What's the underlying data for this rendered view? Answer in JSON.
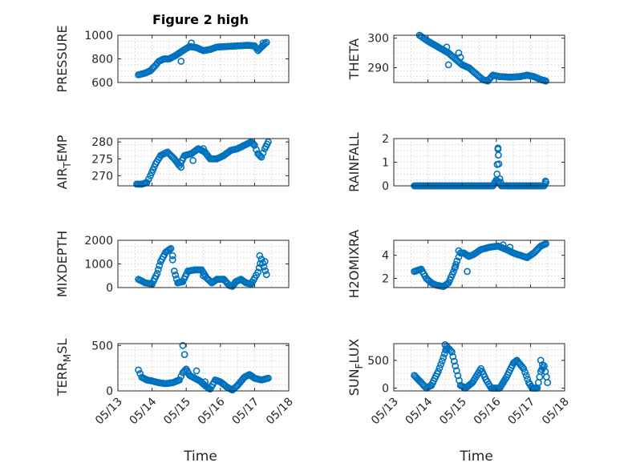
{
  "figure_title": "Figure 2 high",
  "x_tick_labels": [
    "05/13",
    "05/14",
    "05/15",
    "05/16",
    "05/17",
    "05/18"
  ],
  "xlabel": "Time",
  "marker_color": "#0072BD",
  "chart_data": [
    {
      "type": "scatter",
      "ylabel": "PRESSURE",
      "ylim": [
        600,
        1000
      ],
      "yticks": [
        600,
        800,
        1000
      ],
      "xlim": [
        0,
        5
      ],
      "grid": "on",
      "title": "Figure 2 high",
      "anchors": [
        [
          0.6,
          665
        ],
        [
          0.8,
          680
        ],
        [
          0.95,
          700
        ],
        [
          1.1,
          745
        ],
        [
          1.2,
          780
        ],
        [
          1.35,
          800
        ],
        [
          1.5,
          800
        ],
        [
          1.7,
          830
        ],
        [
          1.9,
          870
        ],
        [
          2.1,
          905
        ],
        [
          2.3,
          895
        ],
        [
          2.5,
          870
        ],
        [
          2.7,
          880
        ],
        [
          2.9,
          900
        ],
        [
          3.2,
          905
        ],
        [
          3.5,
          910
        ],
        [
          3.8,
          915
        ],
        [
          4.0,
          910
        ],
        [
          4.1,
          870
        ],
        [
          4.2,
          900
        ],
        [
          4.35,
          940
        ]
      ],
      "step": 0.04,
      "extra": [
        [
          1.85,
          780
        ],
        [
          2.15,
          935
        ],
        [
          4.25,
          935
        ]
      ]
    },
    {
      "type": "scatter",
      "ylabel": "THETA",
      "ylim": [
        285,
        301
      ],
      "yticks": [
        290,
        300
      ],
      "xlim": [
        0,
        5
      ],
      "grid": "on",
      "anchors": [
        [
          0.75,
          301
        ],
        [
          1.0,
          299
        ],
        [
          1.3,
          297
        ],
        [
          1.6,
          295
        ],
        [
          1.8,
          293
        ],
        [
          2.0,
          291
        ],
        [
          2.2,
          290
        ],
        [
          2.4,
          288
        ],
        [
          2.6,
          286
        ],
        [
          2.75,
          285.5
        ],
        [
          2.9,
          287.5
        ],
        [
          3.1,
          287
        ],
        [
          3.4,
          286.8
        ],
        [
          3.7,
          287
        ],
        [
          3.9,
          287.5
        ],
        [
          4.1,
          287
        ],
        [
          4.3,
          286
        ],
        [
          4.45,
          285.5
        ]
      ],
      "step": 0.04,
      "extra": [
        [
          1.9,
          295
        ],
        [
          1.95,
          293.5
        ],
        [
          1.55,
          297
        ],
        [
          1.6,
          291
        ]
      ]
    },
    {
      "type": "scatter",
      "ylabel": "AIR_TEMP",
      "ylim": [
        267,
        281
      ],
      "yticks": [
        270,
        275,
        280
      ],
      "xlim": [
        0,
        5
      ],
      "grid": "on",
      "anchors": [
        [
          0.55,
          267.5
        ],
        [
          0.7,
          267.5
        ],
        [
          0.85,
          268
        ],
        [
          0.95,
          270
        ],
        [
          1.1,
          273.5
        ],
        [
          1.25,
          276
        ],
        [
          1.45,
          277
        ],
        [
          1.65,
          275
        ],
        [
          1.8,
          273
        ],
        [
          1.95,
          276
        ],
        [
          2.15,
          276.5
        ],
        [
          2.35,
          278
        ],
        [
          2.55,
          277
        ],
        [
          2.7,
          275
        ],
        [
          2.9,
          275
        ],
        [
          3.1,
          276
        ],
        [
          3.3,
          277.5
        ],
        [
          3.5,
          278
        ],
        [
          3.7,
          279
        ],
        [
          3.9,
          280
        ],
        [
          4.0,
          279
        ],
        [
          4.1,
          276.5
        ],
        [
          4.2,
          275.5
        ],
        [
          4.3,
          278
        ],
        [
          4.4,
          280
        ]
      ],
      "step": 0.04,
      "extra": [
        [
          1.85,
          272.5
        ],
        [
          2.5,
          278
        ],
        [
          2.2,
          274.5
        ]
      ]
    },
    {
      "type": "scatter",
      "ylabel": "RAINFALL",
      "ylim": [
        0,
        2
      ],
      "yticks": [
        0,
        1,
        2
      ],
      "xlim": [
        0,
        5
      ],
      "grid": "on",
      "anchors": [
        [
          0.6,
          0.0
        ],
        [
          2.9,
          0.0
        ],
        [
          3.0,
          0.25
        ],
        [
          3.05,
          1.55
        ],
        [
          3.1,
          0.3
        ],
        [
          3.15,
          0.0
        ],
        [
          4.4,
          0.0
        ],
        [
          4.45,
          0.15
        ]
      ],
      "step": 0.025,
      "extra": [
        [
          3.05,
          1.6
        ],
        [
          3.06,
          1.3
        ],
        [
          3.02,
          0.5
        ],
        [
          3.04,
          0.2
        ],
        [
          3.07,
          0.15
        ],
        [
          4.44,
          0.2
        ]
      ]
    },
    {
      "type": "scatter",
      "ylabel": "MIXDEPTH",
      "ylim": [
        0,
        2000
      ],
      "yticks": [
        0,
        1000,
        2000
      ],
      "xlim": [
        0,
        5
      ],
      "grid": "on",
      "anchors": [
        [
          0.6,
          350
        ],
        [
          0.8,
          200
        ],
        [
          1.0,
          150
        ],
        [
          1.15,
          600
        ],
        [
          1.25,
          1100
        ],
        [
          1.4,
          1500
        ],
        [
          1.55,
          1650
        ],
        [
          1.65,
          700
        ],
        [
          1.75,
          200
        ],
        [
          1.9,
          250
        ],
        [
          2.05,
          700
        ],
        [
          2.25,
          750
        ],
        [
          2.45,
          750
        ],
        [
          2.6,
          400
        ],
        [
          2.75,
          200
        ],
        [
          2.9,
          350
        ],
        [
          3.1,
          350
        ],
        [
          3.25,
          100
        ],
        [
          3.35,
          50
        ],
        [
          3.45,
          250
        ],
        [
          3.6,
          350
        ],
        [
          3.75,
          200
        ],
        [
          3.9,
          150
        ],
        [
          4.0,
          400
        ],
        [
          4.1,
          650
        ],
        [
          4.2,
          1200
        ],
        [
          4.35,
          550
        ]
      ],
      "step": 0.04,
      "extra": [
        [
          1.6,
          1350
        ],
        [
          4.15,
          1350
        ],
        [
          4.3,
          1100
        ],
        [
          2.5,
          500
        ]
      ]
    },
    {
      "type": "scatter",
      "ylabel": "H2OMIXRA",
      "ylim": [
        1.2,
        5.3
      ],
      "yticks": [
        2,
        4
      ],
      "xlim": [
        0,
        5
      ],
      "grid": "on",
      "anchors": [
        [
          0.6,
          2.6
        ],
        [
          0.8,
          2.8
        ],
        [
          0.95,
          2.0
        ],
        [
          1.1,
          1.6
        ],
        [
          1.25,
          1.4
        ],
        [
          1.45,
          1.3
        ],
        [
          1.6,
          1.6
        ],
        [
          1.75,
          2.6
        ],
        [
          1.85,
          3.5
        ],
        [
          1.95,
          4.2
        ],
        [
          2.05,
          4.2
        ],
        [
          2.2,
          3.9
        ],
        [
          2.35,
          4.1
        ],
        [
          2.55,
          4.5
        ],
        [
          2.8,
          4.7
        ],
        [
          3.05,
          4.8
        ],
        [
          3.3,
          4.5
        ],
        [
          3.5,
          4.2
        ],
        [
          3.7,
          4.0
        ],
        [
          3.9,
          3.8
        ],
        [
          4.1,
          4.2
        ],
        [
          4.3,
          4.8
        ],
        [
          4.45,
          5.0
        ]
      ],
      "step": 0.04,
      "extra": [
        [
          1.8,
          3.0
        ],
        [
          1.9,
          4.4
        ],
        [
          2.15,
          2.6
        ],
        [
          3.2,
          4.9
        ],
        [
          3.4,
          4.7
        ]
      ]
    },
    {
      "type": "scatter",
      "ylabel": "TERR_MSL",
      "ylim": [
        0,
        520
      ],
      "yticks": [
        0,
        500
      ],
      "xlim": [
        0,
        5
      ],
      "grid": "on",
      "anchors": [
        [
          0.6,
          230
        ],
        [
          0.7,
          150
        ],
        [
          0.85,
          120
        ],
        [
          1.0,
          110
        ],
        [
          1.2,
          90
        ],
        [
          1.4,
          80
        ],
        [
          1.6,
          90
        ],
        [
          1.8,
          120
        ],
        [
          1.9,
          200
        ],
        [
          2.0,
          240
        ],
        [
          2.1,
          170
        ],
        [
          2.25,
          140
        ],
        [
          2.4,
          110
        ],
        [
          2.55,
          60
        ],
        [
          2.7,
          20
        ],
        [
          2.85,
          120
        ],
        [
          3.0,
          100
        ],
        [
          3.2,
          40
        ],
        [
          3.35,
          10
        ],
        [
          3.5,
          60
        ],
        [
          3.7,
          150
        ],
        [
          3.85,
          180
        ],
        [
          4.0,
          140
        ],
        [
          4.2,
          120
        ],
        [
          4.4,
          140
        ]
      ],
      "step": 0.04,
      "extra": [
        [
          1.9,
          500
        ],
        [
          1.95,
          400
        ],
        [
          2.3,
          220
        ],
        [
          2.55,
          100
        ],
        [
          2.65,
          30
        ]
      ]
    },
    {
      "type": "scatter",
      "ylabel": "SUN_FLUX",
      "ylim": [
        -50,
        800
      ],
      "yticks": [
        0,
        500
      ],
      "xlim": [
        0,
        5
      ],
      "grid": "on",
      "anchors": [
        [
          0.6,
          230
        ],
        [
          0.8,
          100
        ],
        [
          0.95,
          0
        ],
        [
          1.1,
          50
        ],
        [
          1.3,
          300
        ],
        [
          1.45,
          550
        ],
        [
          1.55,
          750
        ],
        [
          1.7,
          650
        ],
        [
          1.8,
          400
        ],
        [
          1.95,
          50
        ],
        [
          2.1,
          0
        ],
        [
          2.3,
          100
        ],
        [
          2.55,
          350
        ],
        [
          2.7,
          150
        ],
        [
          2.85,
          0
        ],
        [
          3.1,
          0
        ],
        [
          3.3,
          200
        ],
        [
          3.5,
          450
        ],
        [
          3.6,
          500
        ],
        [
          3.8,
          350
        ],
        [
          3.95,
          100
        ],
        [
          4.05,
          0
        ],
        [
          4.2,
          0
        ],
        [
          4.3,
          300
        ],
        [
          4.4,
          400
        ],
        [
          4.5,
          100
        ]
      ],
      "step": 0.035,
      "extra": [
        [
          1.5,
          780
        ],
        [
          1.55,
          700
        ],
        [
          4.3,
          500
        ],
        [
          4.35,
          420
        ]
      ]
    }
  ]
}
